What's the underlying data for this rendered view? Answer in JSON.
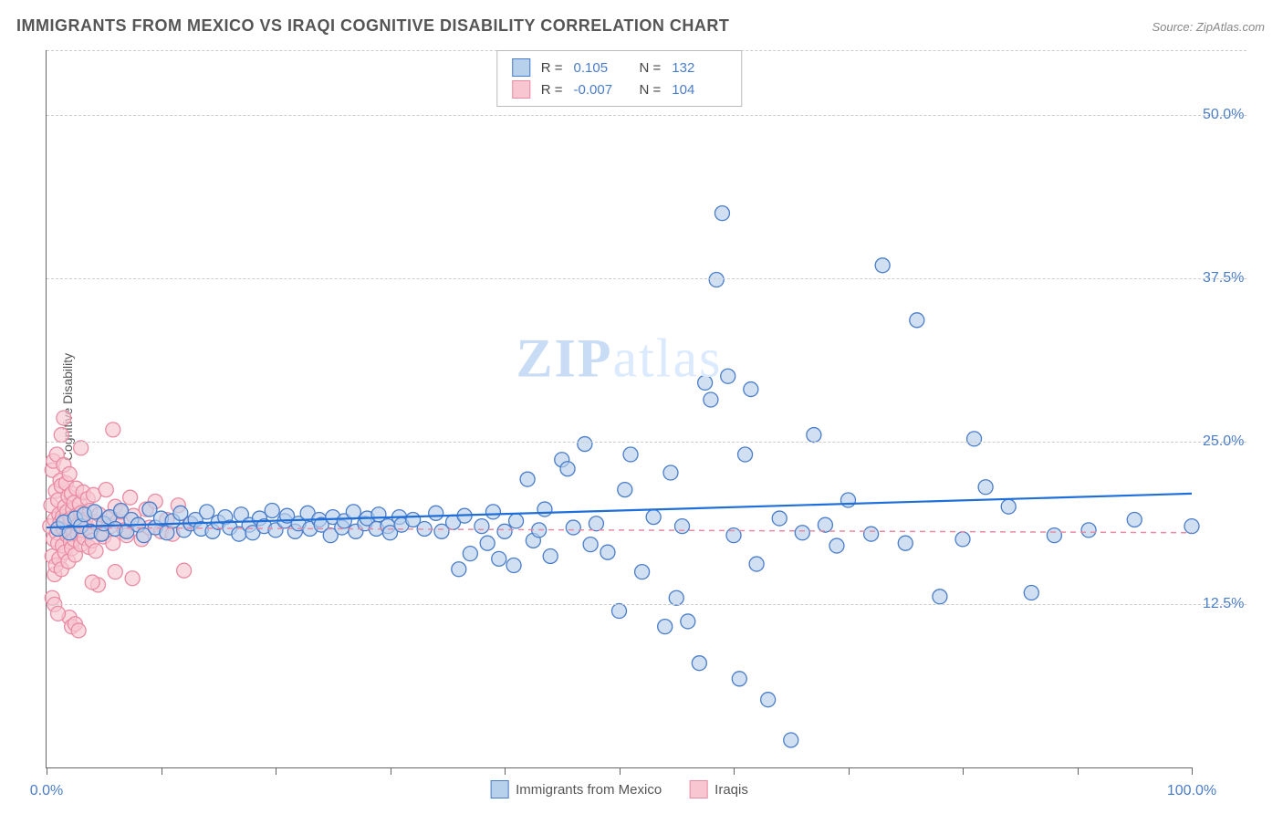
{
  "title": "IMMIGRANTS FROM MEXICO VS IRAQI COGNITIVE DISABILITY CORRELATION CHART",
  "source": "Source: ZipAtlas.com",
  "ylabel": "Cognitive Disability",
  "watermark": {
    "bold": "ZIP",
    "rest": "atlas"
  },
  "chart": {
    "type": "scatter",
    "xlim": [
      0,
      100
    ],
    "ylim": [
      0,
      55
    ],
    "x_ticks": [
      0,
      10,
      20,
      30,
      40,
      50,
      60,
      70,
      80,
      90,
      100
    ],
    "x_tick_labels": {
      "0": "0.0%",
      "100": "100.0%"
    },
    "y_gridlines": [
      12.5,
      25.0,
      37.5,
      50.0
    ],
    "y_gridline_labels": [
      "12.5%",
      "25.0%",
      "37.5%",
      "50.0%"
    ],
    "background_color": "#ffffff",
    "grid_color": "#cccccc",
    "axis_color": "#666666",
    "marker_radius": 8,
    "marker_stroke_width": 1.3,
    "series": [
      {
        "name": "Immigrants from Mexico",
        "fill": "#b7d0eb",
        "stroke": "#4a7dc9",
        "fill_opacity": 0.65,
        "R": "0.105",
        "N": "132",
        "trendline": {
          "x1": 0,
          "y1": 18.4,
          "x2": 100,
          "y2": 21.0,
          "color": "#1e6fd9",
          "width": 2.2,
          "dash": "none"
        },
        "points": [
          [
            1,
            18.3
          ],
          [
            1.5,
            18.8
          ],
          [
            2,
            18.0
          ],
          [
            2.5,
            19.1
          ],
          [
            3,
            18.5
          ],
          [
            3.3,
            19.4
          ],
          [
            3.8,
            18.1
          ],
          [
            4.2,
            19.6
          ],
          [
            4.8,
            17.9
          ],
          [
            5,
            18.7
          ],
          [
            5.5,
            19.2
          ],
          [
            6,
            18.3
          ],
          [
            6.5,
            19.7
          ],
          [
            7,
            18.1
          ],
          [
            7.4,
            19.0
          ],
          [
            8,
            18.6
          ],
          [
            8.5,
            17.8
          ],
          [
            9,
            19.8
          ],
          [
            9.5,
            18.4
          ],
          [
            10,
            19.1
          ],
          [
            10.5,
            18.0
          ],
          [
            11,
            18.9
          ],
          [
            11.7,
            19.5
          ],
          [
            12,
            18.2
          ],
          [
            12.6,
            18.7
          ],
          [
            13,
            19.0
          ],
          [
            13.5,
            18.3
          ],
          [
            14,
            19.6
          ],
          [
            14.5,
            18.1
          ],
          [
            15,
            18.8
          ],
          [
            15.6,
            19.2
          ],
          [
            16,
            18.4
          ],
          [
            16.8,
            17.9
          ],
          [
            17,
            19.4
          ],
          [
            17.7,
            18.6
          ],
          [
            18,
            18.0
          ],
          [
            18.6,
            19.1
          ],
          [
            19,
            18.5
          ],
          [
            19.7,
            19.7
          ],
          [
            20,
            18.2
          ],
          [
            20.8,
            18.9
          ],
          [
            21,
            19.3
          ],
          [
            21.7,
            18.1
          ],
          [
            22,
            18.7
          ],
          [
            22.8,
            19.5
          ],
          [
            23,
            18.3
          ],
          [
            23.8,
            19.0
          ],
          [
            24,
            18.6
          ],
          [
            24.8,
            17.8
          ],
          [
            25,
            19.2
          ],
          [
            25.8,
            18.4
          ],
          [
            26,
            18.9
          ],
          [
            26.8,
            19.6
          ],
          [
            27,
            18.1
          ],
          [
            27.8,
            18.7
          ],
          [
            28,
            19.1
          ],
          [
            28.8,
            18.3
          ],
          [
            29,
            19.4
          ],
          [
            29.8,
            18.5
          ],
          [
            30,
            18.0
          ],
          [
            30.8,
            19.2
          ],
          [
            31,
            18.6
          ],
          [
            32,
            19.0
          ],
          [
            33,
            18.3
          ],
          [
            34,
            19.5
          ],
          [
            34.5,
            18.1
          ],
          [
            35.5,
            18.8
          ],
          [
            36,
            15.2
          ],
          [
            36.5,
            19.3
          ],
          [
            37,
            16.4
          ],
          [
            38,
            18.5
          ],
          [
            38.5,
            17.2
          ],
          [
            39,
            19.6
          ],
          [
            39.5,
            16.0
          ],
          [
            40,
            18.1
          ],
          [
            40.8,
            15.5
          ],
          [
            41,
            18.9
          ],
          [
            42,
            22.1
          ],
          [
            42.5,
            17.4
          ],
          [
            43,
            18.2
          ],
          [
            43.5,
            19.8
          ],
          [
            44,
            16.2
          ],
          [
            45,
            23.6
          ],
          [
            45.5,
            22.9
          ],
          [
            46,
            18.4
          ],
          [
            47,
            24.8
          ],
          [
            47.5,
            17.1
          ],
          [
            48,
            18.7
          ],
          [
            49,
            16.5
          ],
          [
            50,
            12.0
          ],
          [
            50.5,
            21.3
          ],
          [
            51,
            24.0
          ],
          [
            52,
            15.0
          ],
          [
            53,
            19.2
          ],
          [
            54,
            10.8
          ],
          [
            54.5,
            22.6
          ],
          [
            55,
            13.0
          ],
          [
            55.5,
            18.5
          ],
          [
            56,
            11.2
          ],
          [
            57,
            8.0
          ],
          [
            57.5,
            29.5
          ],
          [
            58,
            28.2
          ],
          [
            58.5,
            37.4
          ],
          [
            59,
            42.5
          ],
          [
            59.5,
            30.0
          ],
          [
            60,
            17.8
          ],
          [
            60.5,
            6.8
          ],
          [
            61,
            24.0
          ],
          [
            61.5,
            29.0
          ],
          [
            62,
            15.6
          ],
          [
            63,
            5.2
          ],
          [
            64,
            19.1
          ],
          [
            65,
            2.1
          ],
          [
            66,
            18.0
          ],
          [
            67,
            25.5
          ],
          [
            68,
            18.6
          ],
          [
            69,
            17.0
          ],
          [
            70,
            20.5
          ],
          [
            72,
            17.9
          ],
          [
            73,
            38.5
          ],
          [
            75,
            17.2
          ],
          [
            76,
            34.3
          ],
          [
            78,
            13.1
          ],
          [
            80,
            17.5
          ],
          [
            81,
            25.2
          ],
          [
            82,
            21.5
          ],
          [
            84,
            20.0
          ],
          [
            86,
            13.4
          ],
          [
            88,
            17.8
          ],
          [
            91,
            18.2
          ],
          [
            95,
            19.0
          ],
          [
            100,
            18.5
          ]
        ]
      },
      {
        "name": "Iraqis",
        "fill": "#f8c6d1",
        "stroke": "#e98ba3",
        "fill_opacity": 0.65,
        "R": "-0.007",
        "N": "104",
        "trendline": {
          "x1": 0,
          "y1": 18.4,
          "x2": 100,
          "y2": 18.0,
          "color": "#e98ba3",
          "width": 1.5,
          "dash": "6,5"
        },
        "points": [
          [
            0.3,
            18.5
          ],
          [
            0.4,
            20.1
          ],
          [
            0.5,
            16.2
          ],
          [
            0.5,
            22.8
          ],
          [
            0.6,
            17.5
          ],
          [
            0.6,
            23.5
          ],
          [
            0.7,
            19.0
          ],
          [
            0.7,
            14.8
          ],
          [
            0.8,
            21.2
          ],
          [
            0.8,
            15.5
          ],
          [
            0.9,
            18.0
          ],
          [
            0.9,
            24.0
          ],
          [
            1.0,
            17.2
          ],
          [
            1.0,
            20.5
          ],
          [
            1.1,
            19.4
          ],
          [
            1.1,
            16.0
          ],
          [
            1.2,
            22.0
          ],
          [
            1.2,
            18.8
          ],
          [
            1.3,
            15.2
          ],
          [
            1.3,
            21.6
          ],
          [
            1.4,
            19.2
          ],
          [
            1.4,
            17.0
          ],
          [
            1.5,
            23.2
          ],
          [
            1.5,
            18.3
          ],
          [
            1.6,
            20.0
          ],
          [
            1.6,
            16.5
          ],
          [
            1.7,
            18.9
          ],
          [
            1.7,
            21.8
          ],
          [
            1.8,
            17.8
          ],
          [
            1.8,
            19.6
          ],
          [
            1.9,
            15.8
          ],
          [
            1.9,
            20.8
          ],
          [
            2.0,
            18.5
          ],
          [
            2.0,
            22.5
          ],
          [
            2.1,
            17.3
          ],
          [
            2.1,
            19.1
          ],
          [
            2.2,
            16.8
          ],
          [
            2.2,
            21.0
          ],
          [
            2.3,
            18.1
          ],
          [
            2.3,
            19.8
          ],
          [
            2.4,
            17.5
          ],
          [
            2.4,
            20.3
          ],
          [
            2.5,
            18.7
          ],
          [
            2.5,
            16.3
          ],
          [
            2.6,
            21.4
          ],
          [
            2.6,
            19.3
          ],
          [
            2.7,
            17.9
          ],
          [
            2.8,
            18.6
          ],
          [
            2.9,
            20.2
          ],
          [
            3.0,
            17.1
          ],
          [
            3.0,
            19.5
          ],
          [
            3.1,
            18.2
          ],
          [
            3.2,
            21.1
          ],
          [
            3.3,
            17.6
          ],
          [
            3.4,
            19.0
          ],
          [
            3.5,
            18.4
          ],
          [
            3.6,
            20.6
          ],
          [
            3.7,
            16.9
          ],
          [
            3.8,
            19.7
          ],
          [
            3.9,
            18.1
          ],
          [
            4.0,
            17.4
          ],
          [
            4.1,
            20.9
          ],
          [
            4.2,
            18.8
          ],
          [
            4.3,
            16.6
          ],
          [
            4.5,
            14.0
          ],
          [
            4.6,
            19.4
          ],
          [
            4.8,
            18.0
          ],
          [
            5.0,
            17.7
          ],
          [
            5.2,
            21.3
          ],
          [
            5.4,
            19.1
          ],
          [
            5.6,
            18.5
          ],
          [
            5.8,
            17.2
          ],
          [
            6.0,
            20.0
          ],
          [
            6.2,
            18.9
          ],
          [
            6.5,
            19.6
          ],
          [
            6.8,
            18.2
          ],
          [
            7.0,
            17.8
          ],
          [
            7.3,
            20.7
          ],
          [
            7.6,
            19.3
          ],
          [
            8.0,
            18.6
          ],
          [
            8.3,
            17.5
          ],
          [
            8.7,
            19.8
          ],
          [
            9.0,
            18.4
          ],
          [
            9.5,
            20.4
          ],
          [
            10.0,
            18.1
          ],
          [
            10.5,
            19.0
          ],
          [
            11.0,
            17.9
          ],
          [
            11.5,
            20.1
          ],
          [
            12.0,
            15.1
          ],
          [
            12.5,
            18.7
          ],
          [
            2.0,
            11.5
          ],
          [
            2.2,
            10.8
          ],
          [
            2.5,
            11.0
          ],
          [
            2.8,
            10.5
          ],
          [
            0.5,
            13.0
          ],
          [
            0.7,
            12.5
          ],
          [
            1.0,
            11.8
          ],
          [
            1.3,
            25.5
          ],
          [
            1.5,
            26.8
          ],
          [
            5.8,
            25.9
          ],
          [
            3.0,
            24.5
          ],
          [
            4.0,
            14.2
          ],
          [
            6.0,
            15.0
          ],
          [
            7.5,
            14.5
          ]
        ]
      }
    ]
  },
  "legend_bottom": [
    {
      "label": "Immigrants from Mexico",
      "fill": "#b7d0eb",
      "stroke": "#4a7dc9"
    },
    {
      "label": "Iraqis",
      "fill": "#f8c6d1",
      "stroke": "#e98ba3"
    }
  ]
}
